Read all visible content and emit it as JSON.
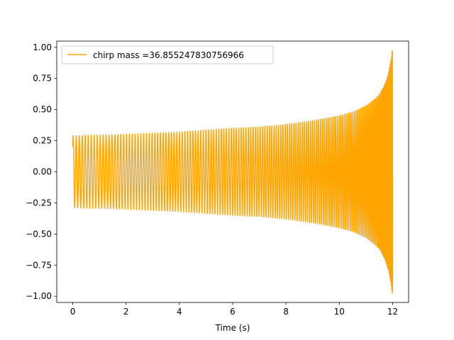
{
  "chart_data": {
    "type": "line",
    "title": "",
    "xlabel": "Time (s)",
    "ylabel": "",
    "xlim": [
      -0.6,
      12.6
    ],
    "ylim": [
      -1.05,
      1.05
    ],
    "x_ticks": [
      0,
      2,
      4,
      6,
      8,
      10,
      12
    ],
    "x_tick_labels": [
      "0",
      "2",
      "4",
      "6",
      "8",
      "10",
      "12"
    ],
    "y_ticks": [
      1.0,
      0.75,
      0.5,
      0.25,
      0.0,
      -0.25,
      -0.5,
      -0.75,
      -1.0
    ],
    "y_tick_labels": [
      "1.00",
      "0.75",
      "0.50",
      "0.25",
      "0.00",
      "−0.25",
      "−0.50",
      "−0.75",
      "−1.00"
    ],
    "grid": false,
    "legend_position": "top-left",
    "series": [
      {
        "name": "chirp mass =36.855247830756966",
        "color": "#FFA500",
        "x_start": 0.0,
        "x_end": 12.0,
        "y_start": 0.2,
        "amplitude_envelope": {
          "x": [
            0,
            1,
            2,
            3,
            4,
            5,
            6,
            7,
            8,
            9,
            10,
            10.5,
            11,
            11.25,
            11.5,
            11.7,
            11.85,
            11.95,
            12.0
          ],
          "y": [
            0.29,
            0.295,
            0.3,
            0.31,
            0.32,
            0.335,
            0.35,
            0.36,
            0.38,
            0.41,
            0.45,
            0.48,
            0.53,
            0.57,
            0.62,
            0.7,
            0.8,
            0.92,
            1.0
          ]
        },
        "cycles": 150
      }
    ]
  }
}
